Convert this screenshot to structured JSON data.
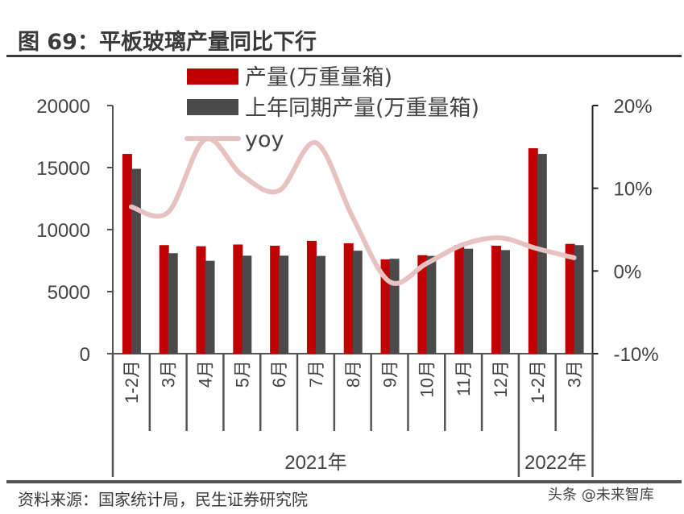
{
  "title": "图 69：平板玻璃产量同比下行",
  "source": "资料来源：国家统计局，民生证券研究院",
  "watermark": "头条 @未来智库",
  "chart_data": {
    "type": "bar",
    "categories": [
      "1-2月",
      "3月",
      "4月",
      "5月",
      "6月",
      "7月",
      "8月",
      "9月",
      "10月",
      "11月",
      "12月",
      "1-2月",
      "3月"
    ],
    "year_groups": [
      {
        "label": "2021年",
        "count": 11
      },
      {
        "label": "2022年",
        "count": 2
      }
    ],
    "series": [
      {
        "name": "产量(万重量箱)",
        "type": "bar",
        "axis": "left",
        "color": "#c00000",
        "values": [
          16100,
          8750,
          8660,
          8800,
          8700,
          9100,
          8900,
          7600,
          7940,
          8750,
          8700,
          16560,
          8850
        ]
      },
      {
        "name": "上年同期产量(万重量箱)",
        "type": "bar",
        "axis": "left",
        "color": "#4a4a4a",
        "values": [
          14900,
          8100,
          7490,
          7900,
          7900,
          7880,
          8300,
          7650,
          7880,
          8460,
          8350,
          16100,
          8750
        ]
      },
      {
        "name": "yoy",
        "type": "line",
        "axis": "right",
        "color": "#e8c1c1",
        "values": [
          7.75,
          7.1,
          15.9,
          11.6,
          9.7,
          15.5,
          6.5,
          -1.3,
          0.9,
          3.2,
          4.0,
          2.7,
          1.6
        ]
      }
    ],
    "left_axis": {
      "ylim": [
        0,
        20000
      ],
      "ticks": [
        "0",
        "5000",
        "10000",
        "15000",
        "20000"
      ]
    },
    "right_axis": {
      "ylim": [
        -10,
        20
      ],
      "ticks": [
        "-10%",
        "0%",
        "10%",
        "20%"
      ]
    },
    "legend_placement": "top-center",
    "grid": false
  }
}
